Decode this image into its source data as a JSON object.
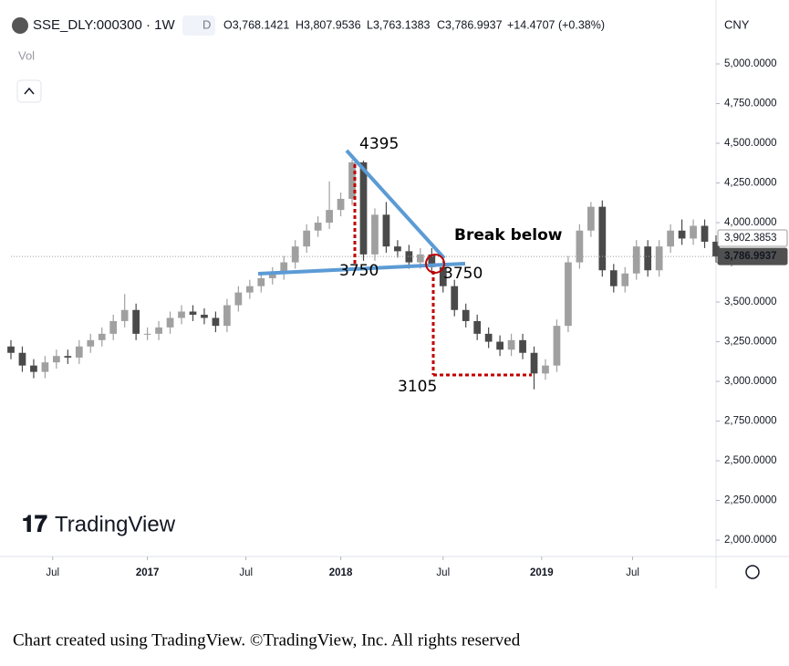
{
  "header": {
    "symbol": "SSE_DLY:000300 · 1W",
    "interval": "D",
    "open": "O3,768.1421",
    "high": "H3,807.9536",
    "low": "L3,763.1383",
    "close": "C3,786.9937",
    "change": "+14.4707 (+0.38%)",
    "currency": "CNY",
    "volume": "Vol",
    "logo": "TradingView"
  },
  "chart_data": {
    "type": "candlestick",
    "x": [
      0,
      3,
      6,
      9,
      12,
      15,
      18,
      21,
      24,
      27,
      30,
      33,
      36,
      39,
      42,
      45,
      48,
      51,
      54,
      57,
      60,
      63,
      66,
      69,
      72,
      75,
      78,
      81,
      84,
      87,
      90,
      93,
      96,
      99,
      102,
      105,
      108,
      111,
      114,
      117,
      120,
      123,
      126,
      129,
      132,
      135,
      138,
      141,
      144,
      147,
      150,
      153,
      156,
      159,
      162,
      165,
      168,
      171,
      174,
      177,
      180,
      183,
      186
    ],
    "open": [
      3220,
      3180,
      3100,
      3060,
      3120,
      3160,
      3150,
      3220,
      3260,
      3300,
      3380,
      3450,
      3300,
      3300,
      3340,
      3400,
      3440,
      3420,
      3400,
      3350,
      3480,
      3560,
      3600,
      3650,
      3680,
      3750,
      3850,
      3950,
      4000,
      4080,
      4150,
      4380,
      3800,
      4050,
      3850,
      3820,
      3750,
      3800,
      3720,
      3600,
      3450,
      3380,
      3300,
      3250,
      3200,
      3260,
      3180,
      3050,
      3100,
      3350,
      3750,
      3950,
      4100,
      3700,
      3600,
      3680,
      3850,
      3700,
      3850,
      3950,
      3900,
      3980,
      3880
    ],
    "high": [
      3260,
      3220,
      3140,
      3160,
      3200,
      3200,
      3260,
      3300,
      3340,
      3420,
      3550,
      3490,
      3340,
      3380,
      3440,
      3480,
      3480,
      3460,
      3440,
      3520,
      3600,
      3640,
      3690,
      3720,
      3790,
      3890,
      3990,
      4040,
      4260,
      4190,
      4395,
      4390,
      4090,
      4130,
      3890,
      3860,
      3840,
      3840,
      3760,
      3640,
      3490,
      3420,
      3340,
      3290,
      3300,
      3300,
      3220,
      3140,
      3390,
      3790,
      3990,
      4130,
      4140,
      3740,
      3720,
      3890,
      3890,
      3890,
      3990,
      4020,
      4020,
      4020,
      3920
    ],
    "low": [
      3140,
      3060,
      3020,
      3020,
      3080,
      3110,
      3110,
      3180,
      3220,
      3260,
      3340,
      3260,
      3260,
      3260,
      3300,
      3360,
      3380,
      3360,
      3310,
      3310,
      3440,
      3520,
      3560,
      3610,
      3640,
      3710,
      3810,
      3910,
      3960,
      4040,
      4110,
      3760,
      3760,
      3810,
      3780,
      3710,
      3710,
      3680,
      3560,
      3410,
      3340,
      3260,
      3210,
      3160,
      3160,
      3140,
      2950,
      3010,
      3060,
      3310,
      3710,
      3910,
      3660,
      3560,
      3560,
      3640,
      3660,
      3660,
      3810,
      3860,
      3860,
      3840,
      3750
    ],
    "close": [
      3180,
      3100,
      3060,
      3120,
      3160,
      3150,
      3220,
      3260,
      3300,
      3380,
      3450,
      3300,
      3300,
      3340,
      3400,
      3440,
      3420,
      3400,
      3350,
      3480,
      3560,
      3600,
      3650,
      3680,
      3750,
      3850,
      3950,
      4000,
      4080,
      4150,
      4380,
      3800,
      4050,
      3850,
      3820,
      3750,
      3800,
      3720,
      3600,
      3450,
      3380,
      3300,
      3250,
      3200,
      3260,
      3180,
      3050,
      3100,
      3350,
      3750,
      3950,
      4100,
      3700,
      3600,
      3680,
      3850,
      3700,
      3850,
      3950,
      3900,
      3980,
      3880,
      3787
    ],
    "up_color": "#a0a0a0",
    "down_color": "#4a4a4a",
    "xlim": [
      0,
      186
    ],
    "xticks": [
      {
        "value": 11,
        "label": "Jul"
      },
      {
        "value": 36,
        "label": "2017"
      },
      {
        "value": 62,
        "label": "Jul"
      },
      {
        "value": 87,
        "label": "2018"
      },
      {
        "value": 114,
        "label": "Jul"
      },
      {
        "value": 140,
        "label": "2019"
      },
      {
        "value": 164,
        "label": "Jul"
      }
    ],
    "ylim": [
      1897,
      5345
    ],
    "yticks": [
      {
        "value": 2000,
        "label": "2,000.0000"
      },
      {
        "value": 2250,
        "label": "2,250.0000"
      },
      {
        "value": 2500,
        "label": "2,500.0000"
      },
      {
        "value": 2750,
        "label": "2,750.0000"
      },
      {
        "value": 3000,
        "label": "3,000.0000"
      },
      {
        "value": 3250,
        "label": "3,250.0000"
      },
      {
        "value": 3500,
        "label": "3,500.0000"
      },
      {
        "value": 3750,
        "label": "3,750.0000"
      },
      {
        "value": 4000,
        "label": "4,000.0000"
      },
      {
        "value": 4250,
        "label": "4,250.0000"
      },
      {
        "value": 4500,
        "label": "4,500.0000"
      },
      {
        "value": 4750,
        "label": "4,750.0000"
      },
      {
        "value": 5000,
        "label": "5,000.0000"
      }
    ],
    "price_tags": [
      {
        "value": 3902.3853,
        "label": "3,902.3853"
      },
      {
        "value": 3786.9937,
        "label": "3,786.9937"
      }
    ],
    "annotations": [
      {
        "text": "4395"
      },
      {
        "text": "3750"
      },
      {
        "text": "3750"
      },
      {
        "text": "3105"
      },
      {
        "text": "Break below"
      }
    ]
  },
  "caption": "Chart created using TradingView. ©TradingView, Inc. All rights reserved"
}
